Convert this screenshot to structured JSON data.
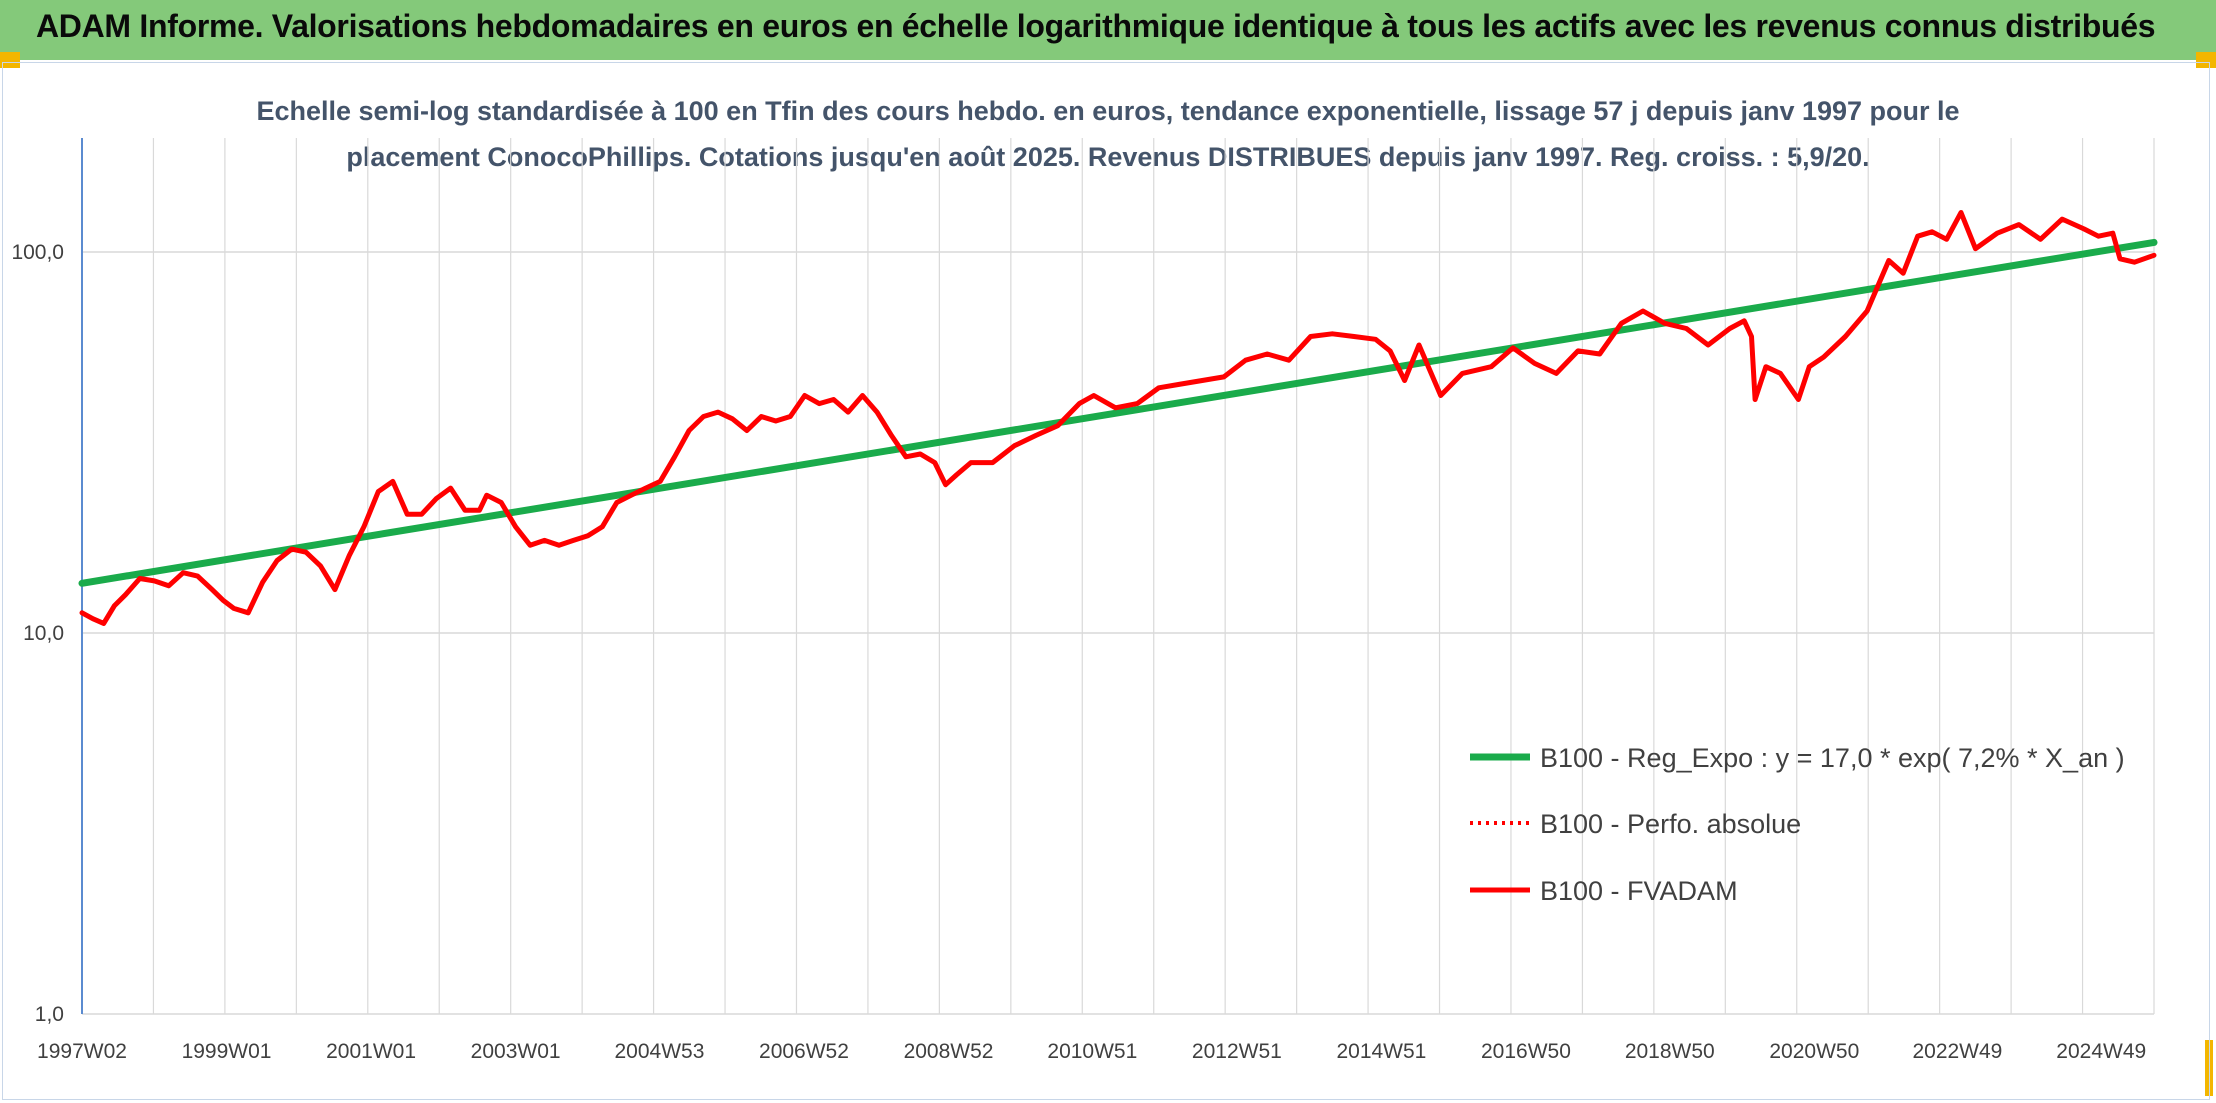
{
  "header": {
    "title": "ADAM Informe. Valorisations hebdomadaires en euros en échelle logarithmique identique à tous les actifs avec les revenus connus distribués",
    "background_color": "#84c97a",
    "corner_color": "#f3b600"
  },
  "chart_data": {
    "type": "line",
    "title_line1": "Echelle semi-log standardisée à 100 en Tfin des cours hebdo. en euros, tendance exponentielle, lissage 57 j depuis janv 1997 pour le",
    "title_line2": "placement ConocoPhillips. Cotations jusqu'en août 2025. Revenus DISTRIBUES depuis janv 1997. Reg. croiss. : 5,9/20.",
    "y_scale": "log",
    "ylim": [
      1,
      200
    ],
    "y_ticks": [
      1,
      10,
      100
    ],
    "y_tick_labels": [
      "1,0",
      "10,0",
      "100,0"
    ],
    "x_range": [
      1997.0,
      2025.67
    ],
    "x_ticks": [
      1997.0,
      1999.0,
      2001.0,
      2003.0,
      2004.99,
      2006.99,
      2008.99,
      2010.98,
      2012.98,
      2014.98,
      2016.98,
      2018.97,
      2020.97,
      2022.95,
      2024.94
    ],
    "x_tick_labels": [
      "1997W02",
      "1999W01",
      "2001W01",
      "2003W01",
      "2004W53",
      "2006W52",
      "2008W52",
      "2010W51",
      "2012W51",
      "2014W51",
      "2016W50",
      "2018W50",
      "2020W50",
      "2022W49",
      "2024W49"
    ],
    "grid": true,
    "legend_position": "bottom-right",
    "series": [
      {
        "name": "B100 - Reg_Expo : y = 17,0 * exp( 7,2% *  X_an )",
        "color": "#1aab4b",
        "style": "solid-thick",
        "x": [
          1997.0,
          2025.67
        ],
        "y": [
          13.5,
          106.0
        ]
      },
      {
        "name": "B100 - Perfo. absolue",
        "color": "#ff0000",
        "style": "dotted",
        "x": [],
        "y": []
      },
      {
        "name": "B100 - FVADAM",
        "color": "#ff0000",
        "style": "solid",
        "x": [
          1997.0,
          1997.15,
          1997.3,
          1997.45,
          1997.6,
          1997.8,
          1998.0,
          1998.2,
          1998.4,
          1998.6,
          1998.8,
          1998.95,
          1999.1,
          1999.3,
          1999.5,
          1999.7,
          1999.9,
          2000.1,
          2000.3,
          2000.5,
          2000.7,
          2000.9,
          2001.1,
          2001.3,
          2001.5,
          2001.7,
          2001.9,
          2002.1,
          2002.3,
          2002.5,
          2002.6,
          2002.8,
          2003.0,
          2003.2,
          2003.4,
          2003.6,
          2003.8,
          2004.0,
          2004.2,
          2004.4,
          2004.6,
          2004.8,
          2005.0,
          2005.2,
          2005.4,
          2005.6,
          2005.8,
          2006.0,
          2006.2,
          2006.4,
          2006.6,
          2006.8,
          2007.0,
          2007.2,
          2007.4,
          2007.6,
          2007.8,
          2008.0,
          2008.2,
          2008.4,
          2008.6,
          2008.8,
          2008.95,
          2009.1,
          2009.3,
          2009.6,
          2009.9,
          2010.2,
          2010.5,
          2010.8,
          2011.0,
          2011.3,
          2011.6,
          2011.9,
          2012.2,
          2012.5,
          2012.8,
          2013.1,
          2013.4,
          2013.7,
          2014.0,
          2014.3,
          2014.6,
          2014.9,
          2015.1,
          2015.3,
          2015.5,
          2015.8,
          2016.1,
          2016.5,
          2016.8,
          2017.1,
          2017.4,
          2017.7,
          2018.0,
          2018.3,
          2018.6,
          2018.9,
          2019.2,
          2019.5,
          2019.8,
          2020.0,
          2020.1,
          2020.15,
          2020.3,
          2020.5,
          2020.75,
          2020.9,
          2021.1,
          2021.4,
          2021.7,
          2022.0,
          2022.2,
          2022.4,
          2022.6,
          2022.8,
          2023.0,
          2023.2,
          2023.5,
          2023.8,
          2024.1,
          2024.4,
          2024.7,
          2024.9,
          2025.1,
          2025.2,
          2025.4,
          2025.67
        ],
        "y": [
          11.3,
          10.9,
          10.6,
          11.8,
          12.6,
          13.9,
          13.7,
          13.3,
          14.4,
          14.1,
          13.0,
          12.2,
          11.6,
          11.3,
          13.6,
          15.5,
          16.6,
          16.3,
          15.0,
          13.0,
          16.0,
          19.0,
          23.5,
          25.0,
          20.5,
          20.5,
          22.5,
          24.0,
          21.0,
          21.0,
          23.0,
          22.0,
          19.0,
          17.0,
          17.5,
          17.0,
          17.5,
          18.0,
          19.0,
          22.0,
          23.0,
          24.0,
          25.0,
          29.0,
          34.0,
          37.0,
          38.0,
          36.5,
          34.0,
          37.0,
          36.0,
          37.0,
          42.0,
          40.0,
          41.0,
          38.0,
          42.0,
          38.0,
          33.0,
          29.0,
          29.5,
          28.0,
          24.5,
          26.0,
          28.0,
          28.0,
          31.0,
          33.0,
          35.0,
          40.0,
          42.0,
          39.0,
          40.0,
          44.0,
          45.0,
          46.0,
          47.0,
          52.0,
          54.0,
          52.0,
          60.0,
          61.0,
          60.0,
          59.0,
          55.0,
          46.0,
          57.0,
          42.0,
          48.0,
          50.0,
          56.0,
          51.0,
          48.0,
          55.0,
          54.0,
          65.0,
          70.0,
          65.0,
          63.0,
          57.0,
          63.0,
          66.0,
          60.0,
          41.0,
          50.0,
          48.0,
          41.0,
          50.0,
          53.0,
          60.0,
          70.0,
          95.0,
          88.0,
          110.0,
          113.0,
          108.0,
          127.0,
          102.0,
          112.0,
          118.0,
          108.0,
          122.0,
          115.0,
          110.0,
          112.0,
          96.0,
          94.0,
          98.0
        ]
      }
    ]
  }
}
